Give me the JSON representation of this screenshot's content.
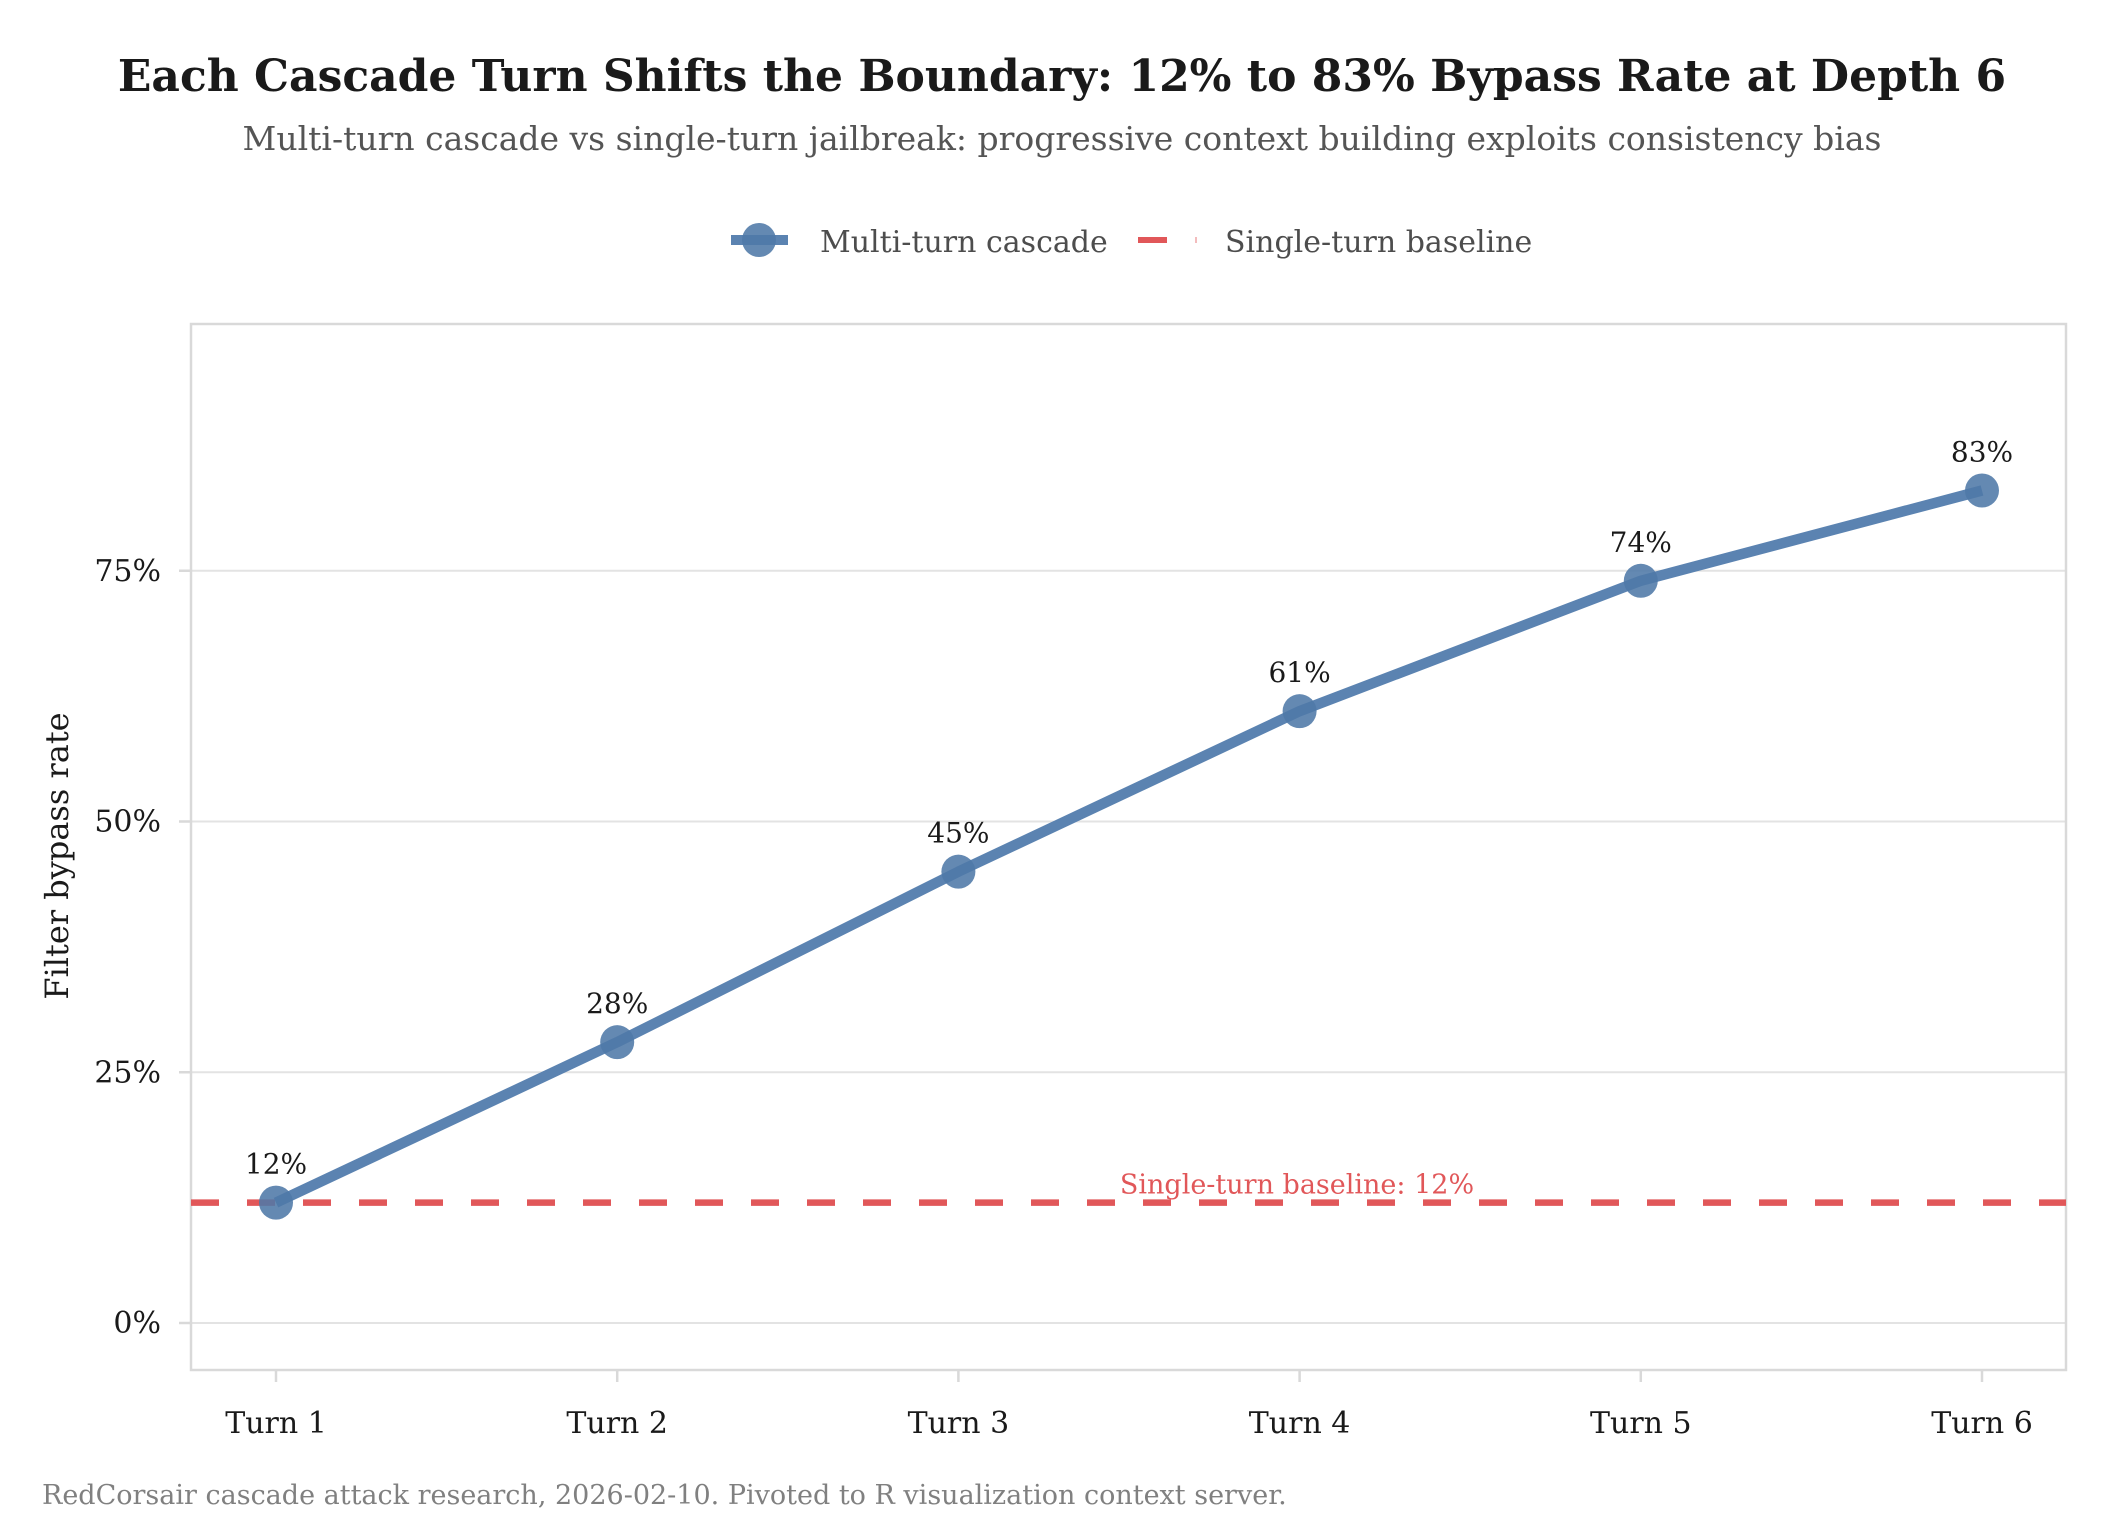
{
  "chart_data": {
    "type": "line",
    "title": "Each Cascade Turn Shifts the Boundary: 12% to 83% Bypass Rate at Depth 6",
    "subtitle": "Multi-turn cascade vs single-turn jailbreak: progressive context building exploits consistency bias",
    "xlabel": "",
    "ylabel": "Filter bypass rate",
    "categories": [
      "Turn 1",
      "Turn 2",
      "Turn 3",
      "Turn 4",
      "Turn 5",
      "Turn 6"
    ],
    "series": [
      {
        "name": "Multi-turn cascade",
        "values": [
          12,
          28,
          45,
          61,
          74,
          83
        ],
        "data_labels": [
          "12%",
          "28%",
          "45%",
          "61%",
          "74%",
          "83%"
        ],
        "color": "#4E79A7",
        "style": "solid line with points"
      }
    ],
    "reference_lines": [
      {
        "name": "Single-turn baseline",
        "value": 12,
        "color": "#E15759",
        "style": "dashed",
        "annotation": "Single-turn baseline: 12%"
      }
    ],
    "yticks": [
      0,
      25,
      50,
      75
    ],
    "ytick_labels": [
      "0%",
      "25%",
      "50%",
      "75%"
    ],
    "ylim": [
      -4.5,
      100
    ],
    "grid": true,
    "legend": {
      "position": "top",
      "entries": [
        "Multi-turn cascade",
        "Single-turn baseline"
      ]
    },
    "caption": "RedCorsair cascade attack research, 2026-02-10. Pivoted to R visualization context server."
  }
}
